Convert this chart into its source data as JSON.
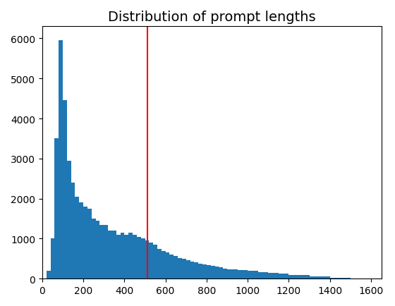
{
  "title": "Distribution of prompt lengths",
  "bar_color": "#1f77b4",
  "vline_x": 512,
  "vline_color": "red",
  "vline_linewidth": 1.5,
  "xlim": [
    0,
    1650
  ],
  "ylim": [
    0,
    6300
  ],
  "xticks": [
    0,
    200,
    400,
    600,
    800,
    1000,
    1200,
    1400,
    1600
  ],
  "yticks": [
    0,
    1000,
    2000,
    3000,
    4000,
    5000,
    6000
  ],
  "bin_edges": [
    0,
    20,
    40,
    60,
    80,
    100,
    120,
    140,
    160,
    180,
    200,
    220,
    240,
    260,
    280,
    300,
    320,
    340,
    360,
    380,
    400,
    420,
    440,
    460,
    480,
    500,
    520,
    540,
    560,
    580,
    600,
    620,
    640,
    660,
    680,
    700,
    720,
    740,
    760,
    780,
    800,
    820,
    840,
    860,
    880,
    900,
    950,
    1000,
    1050,
    1100,
    1150,
    1200,
    1300,
    1400,
    1500,
    1600
  ],
  "bin_heights": [
    0,
    200,
    1000,
    3500,
    5950,
    4450,
    2950,
    2400,
    2050,
    1900,
    1800,
    1750,
    1500,
    1450,
    1350,
    1350,
    1200,
    1200,
    1100,
    1150,
    1100,
    1150,
    1100,
    1050,
    1000,
    950,
    900,
    850,
    750,
    700,
    650,
    600,
    560,
    520,
    490,
    460,
    430,
    410,
    380,
    360,
    340,
    320,
    300,
    280,
    260,
    240,
    220,
    190,
    170,
    150,
    120,
    90,
    60,
    30,
    10
  ],
  "figsize": [
    5.6,
    4.35
  ],
  "dpi": 100
}
